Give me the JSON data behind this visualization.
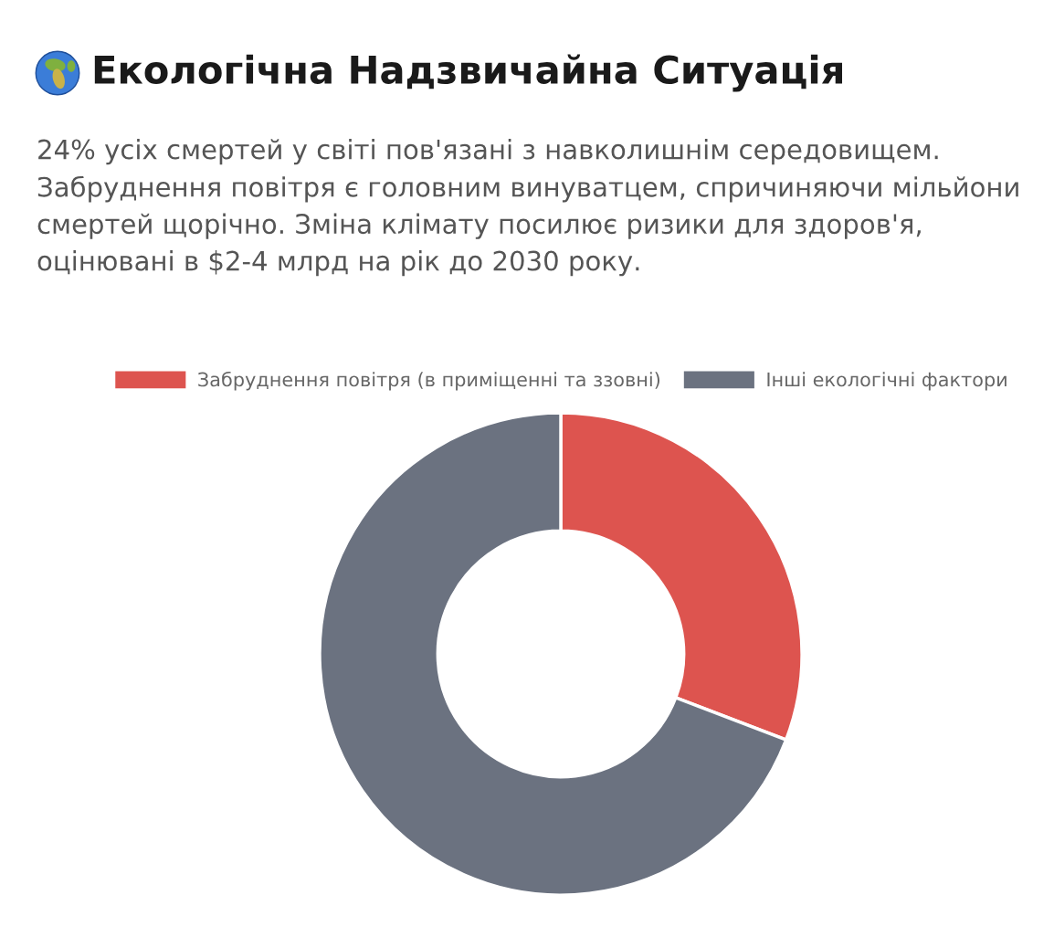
{
  "chart_data": {
    "type": "donut",
    "title": "Екологічна Надзвичайна Ситуація",
    "subtitle": "24% усіх смертей у світі пов'язані з навколишнім середовищем. Забруднення повітря є головним винуватцем, спричиняючи мільйони смертей щорічно. Зміна клімату посилює ризики для здоров'я, оцінювані в $2-4 млрд на рік до 2030 року.",
    "categories": [
      "Забруднення повітря (в приміщенні та ззовні)",
      "Інші екологічні фактори"
    ],
    "values": [
      30.8,
      69.2
    ],
    "colors": [
      "#dd544f",
      "#6b7280"
    ],
    "legend": "top"
  }
}
